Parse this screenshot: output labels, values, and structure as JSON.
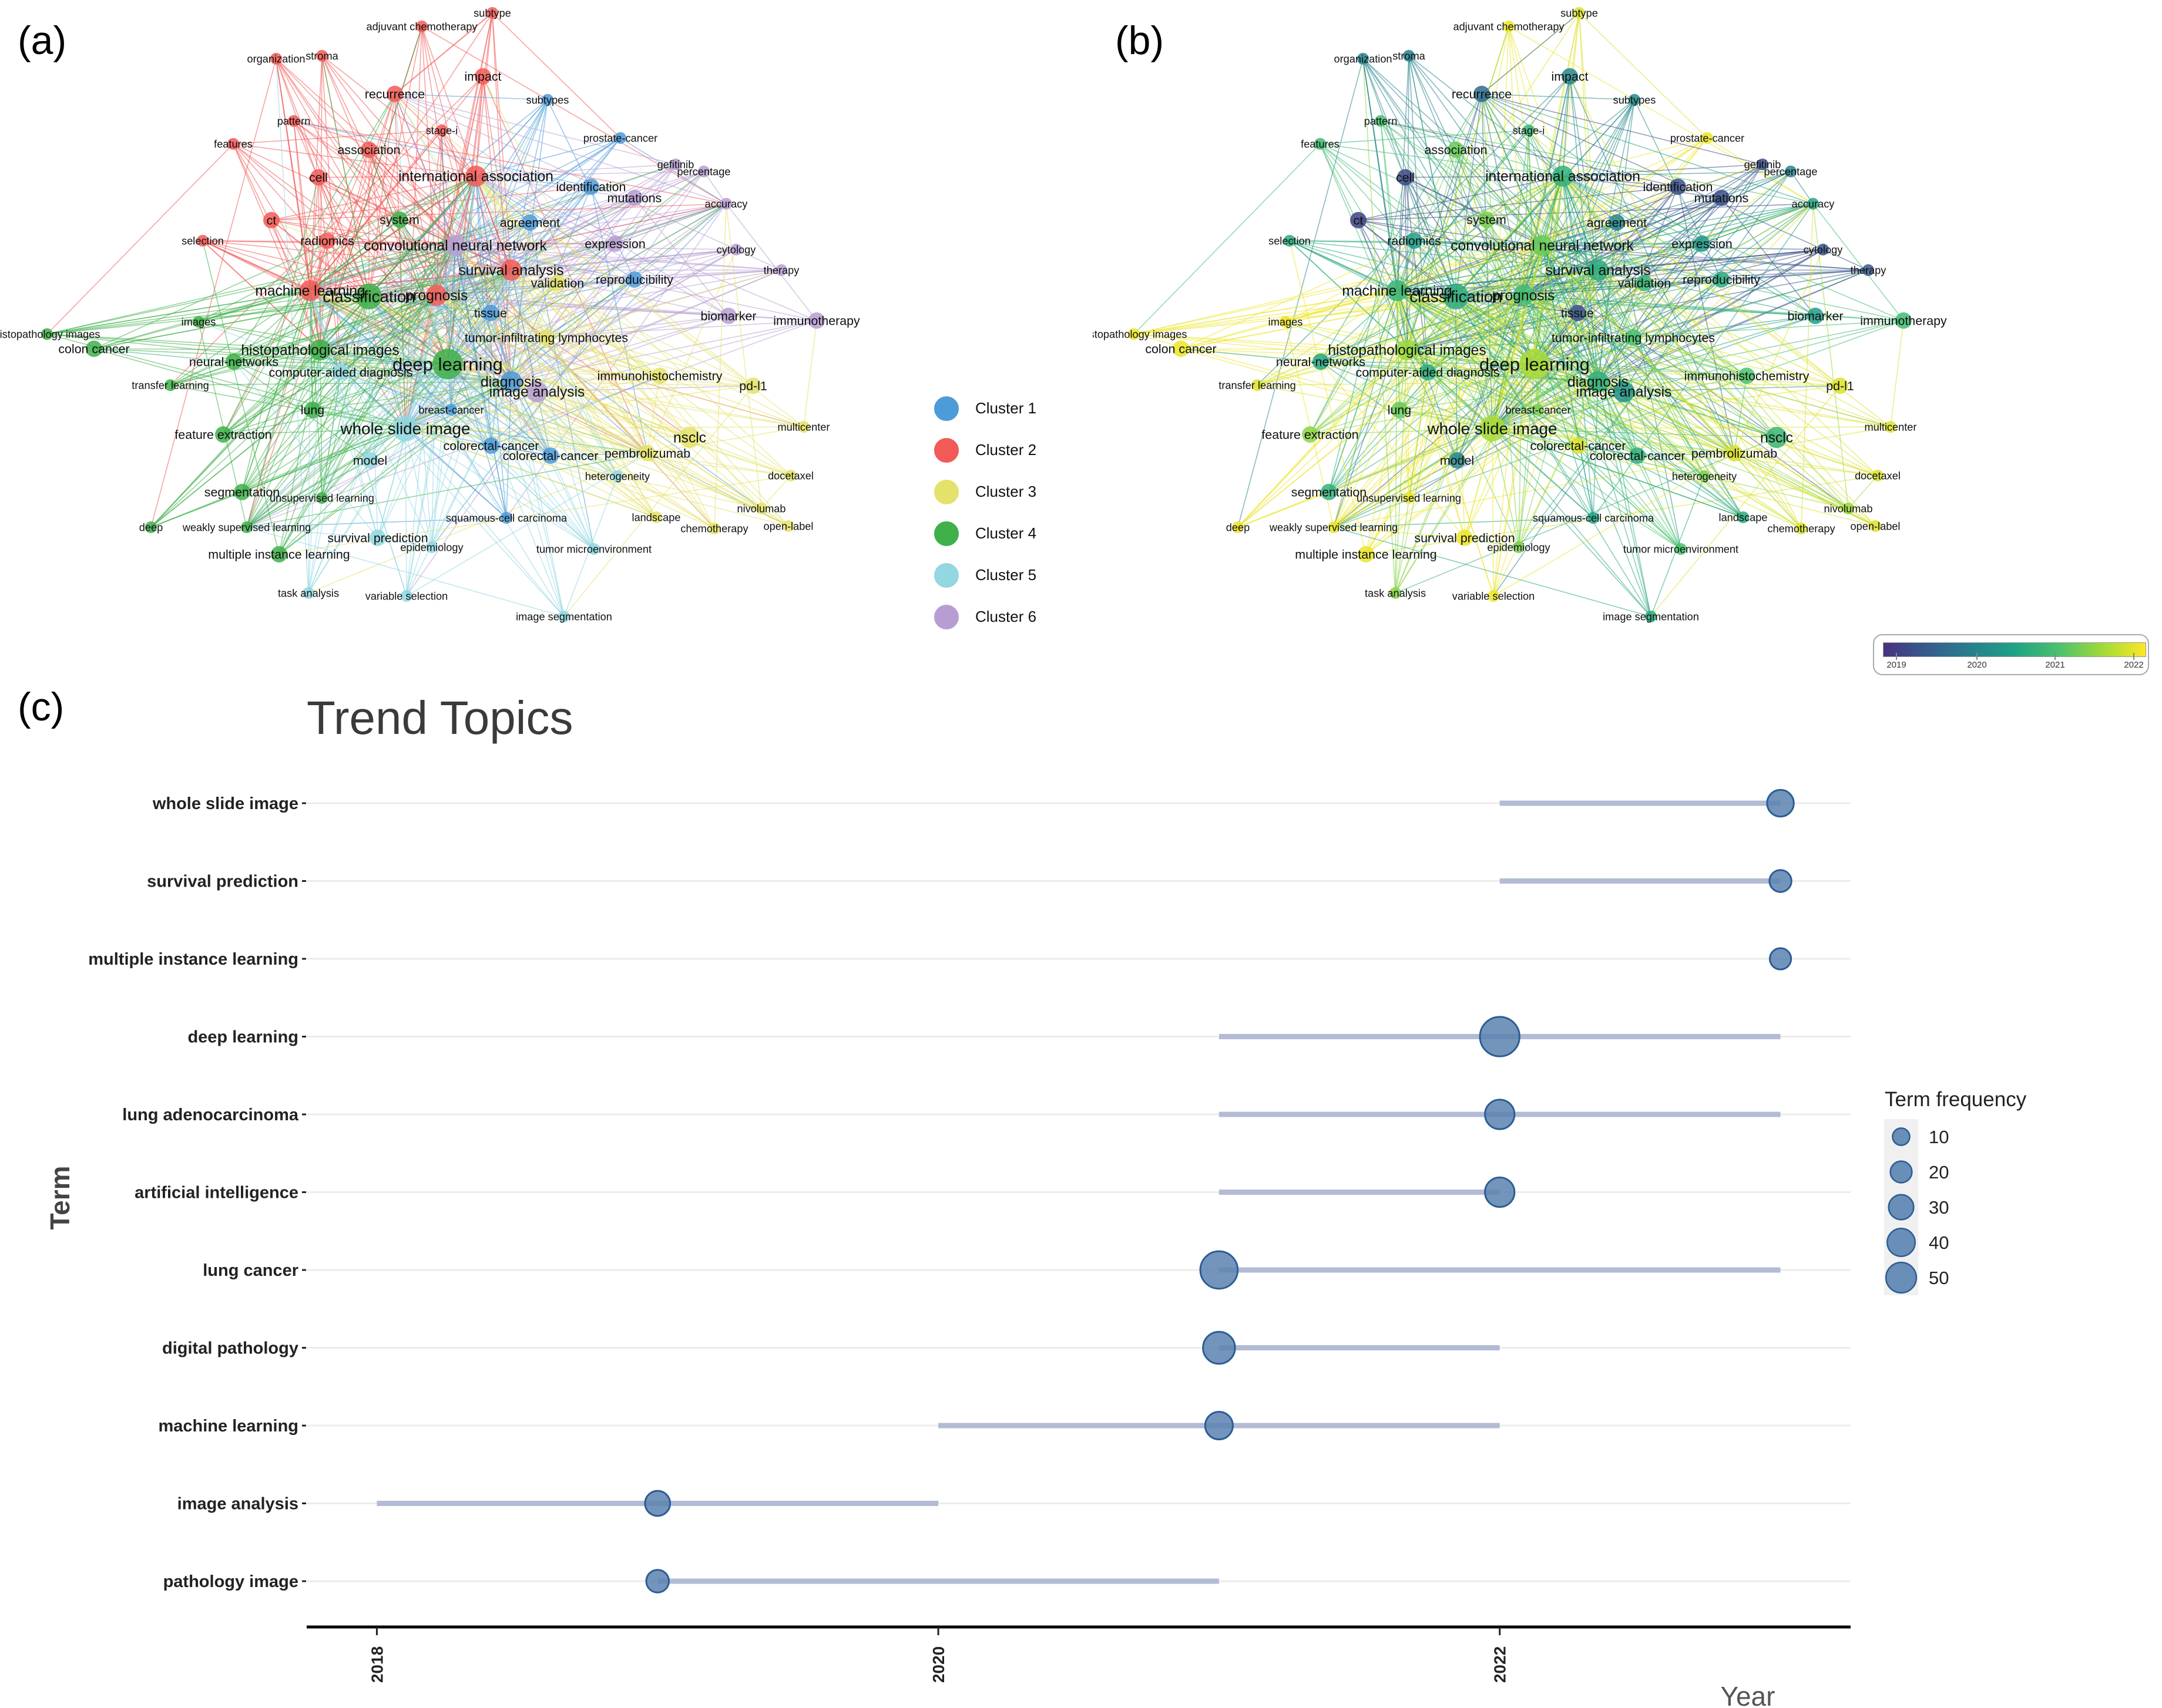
{
  "panels": {
    "a_label": "(a)",
    "b_label": "(b)",
    "c_label": "(c)"
  },
  "network": {
    "clusters": [
      {
        "name": "Cluster 1",
        "color": "#4e9bd9"
      },
      {
        "name": "Cluster 2",
        "color": "#f25a57"
      },
      {
        "name": "Cluster 3",
        "color": "#e4e26a"
      },
      {
        "name": "Cluster 4",
        "color": "#3fb04a"
      },
      {
        "name": "Cluster 5",
        "color": "#92d7e1"
      },
      {
        "name": "Cluster 6",
        "color": "#b79ed2"
      }
    ],
    "overlay_scale": {
      "ticks": [
        "2019",
        "2020",
        "2021",
        "2022"
      ],
      "colors": [
        "#46327e",
        "#277f8e",
        "#4ac16d",
        "#fde725"
      ]
    },
    "nodes": [
      {
        "label": "subtype",
        "cluster": 2,
        "year": 2021.9,
        "w": 1
      },
      {
        "label": "adjuvant chemotherapy",
        "cluster": 2,
        "year": 2022.0,
        "w": 1
      },
      {
        "label": "organization",
        "cluster": 2,
        "year": 2020.0,
        "w": 1
      },
      {
        "label": "stroma",
        "cluster": 2,
        "year": 2019.9,
        "w": 1
      },
      {
        "label": "impact",
        "cluster": 2,
        "year": 2020.0,
        "w": 2
      },
      {
        "label": "recurrence",
        "cluster": 2,
        "year": 2019.6,
        "w": 2
      },
      {
        "label": "subtypes",
        "cluster": 1,
        "year": 2020.1,
        "w": 1
      },
      {
        "label": "pattern",
        "cluster": 2,
        "year": 2021.0,
        "w": 1
      },
      {
        "label": "stage-i",
        "cluster": 2,
        "year": 2020.8,
        "w": 1
      },
      {
        "label": "features",
        "cluster": 2,
        "year": 2020.9,
        "w": 1
      },
      {
        "label": "association",
        "cluster": 2,
        "year": 2021.2,
        "w": 2
      },
      {
        "label": "prostate-cancer",
        "cluster": 1,
        "year": 2022.0,
        "w": 1
      },
      {
        "label": "gefitinib",
        "cluster": 6,
        "year": 2019.2,
        "w": 1
      },
      {
        "label": "percentage",
        "cluster": 6,
        "year": 2020.0,
        "w": 1
      },
      {
        "label": "international association",
        "cluster": 2,
        "year": 2020.7,
        "w": 3
      },
      {
        "label": "cell",
        "cluster": 2,
        "year": 2019.1,
        "w": 2
      },
      {
        "label": "identification",
        "cluster": 1,
        "year": 2019.2,
        "w": 2
      },
      {
        "label": "mutations",
        "cluster": 6,
        "year": 2019.2,
        "w": 2
      },
      {
        "label": "accuracy",
        "cluster": 6,
        "year": 2020.5,
        "w": 1
      },
      {
        "label": "ct",
        "cluster": 2,
        "year": 2019.0,
        "w": 2
      },
      {
        "label": "system",
        "cluster": 4,
        "year": 2021.3,
        "w": 2
      },
      {
        "label": "agreement",
        "cluster": 1,
        "year": 2020.0,
        "w": 2
      },
      {
        "label": "selection",
        "cluster": 2,
        "year": 2020.6,
        "w": 1
      },
      {
        "label": "radiomics",
        "cluster": 2,
        "year": 2020.4,
        "w": 2
      },
      {
        "label": "convolutional neural network",
        "cluster": 6,
        "year": 2021.2,
        "w": 3
      },
      {
        "label": "expression",
        "cluster": 6,
        "year": 2020.3,
        "w": 2
      },
      {
        "label": "cytology",
        "cluster": 6,
        "year": 2019.2,
        "w": 1
      },
      {
        "label": "survival analysis",
        "cluster": 2,
        "year": 2020.6,
        "w": 3
      },
      {
        "label": "validation",
        "cluster": 3,
        "year": 2020.8,
        "w": 2
      },
      {
        "label": "reproducibility",
        "cluster": 1,
        "year": 2020.6,
        "w": 2
      },
      {
        "label": "therapy",
        "cluster": 6,
        "year": 2019.3,
        "w": 1
      },
      {
        "label": "machine learning",
        "cluster": 2,
        "year": 2020.8,
        "w": 3
      },
      {
        "label": "classification",
        "cluster": 4,
        "year": 2020.6,
        "w": 4
      },
      {
        "label": "prognosis",
        "cluster": 2,
        "year": 2020.9,
        "w": 3
      },
      {
        "label": "tissue",
        "cluster": 1,
        "year": 2019.2,
        "w": 2
      },
      {
        "label": "images",
        "cluster": 4,
        "year": 2022.0,
        "w": 1
      },
      {
        "label": "biomarker",
        "cluster": 6,
        "year": 2020.4,
        "w": 2
      },
      {
        "label": "immunotherapy",
        "cluster": 6,
        "year": 2020.9,
        "w": 2
      },
      {
        "label": "histopathology images",
        "cluster": 4,
        "year": 2022.0,
        "w": 1
      },
      {
        "label": "colon cancer",
        "cluster": 4,
        "year": 2022.0,
        "w": 2
      },
      {
        "label": "histopathological images",
        "cluster": 4,
        "year": 2021.5,
        "w": 3
      },
      {
        "label": "tumor-infiltrating lymphocytes",
        "cluster": 3,
        "year": 2021.0,
        "w": 2
      },
      {
        "label": "neural-networks",
        "cluster": 4,
        "year": 2020.5,
        "w": 2
      },
      {
        "label": "deep learning",
        "cluster": 4,
        "year": 2021.6,
        "w": 5
      },
      {
        "label": "computer-aided diagnosis",
        "cluster": 5,
        "year": 2020.6,
        "w": 2
      },
      {
        "label": "diagnosis",
        "cluster": 1,
        "year": 2020.7,
        "w": 3
      },
      {
        "label": "immunohistochemistry",
        "cluster": 3,
        "year": 2021.0,
        "w": 2
      },
      {
        "label": "image analysis",
        "cluster": 6,
        "year": 2020.2,
        "w": 3
      },
      {
        "label": "pd-l1",
        "cluster": 3,
        "year": 2021.9,
        "w": 2
      },
      {
        "label": "transfer learning",
        "cluster": 4,
        "year": 2021.9,
        "w": 1
      },
      {
        "label": "lung",
        "cluster": 4,
        "year": 2021.2,
        "w": 2
      },
      {
        "label": "breast-cancer",
        "cluster": 1,
        "year": 2021.3,
        "w": 1
      },
      {
        "label": "multicenter",
        "cluster": 3,
        "year": 2021.9,
        "w": 1
      },
      {
        "label": "whole slide image",
        "cluster": 5,
        "year": 2021.6,
        "w": 4
      },
      {
        "label": "feature extraction",
        "cluster": 4,
        "year": 2021.4,
        "w": 2
      },
      {
        "label": "colorectal-cancer",
        "cluster": 1,
        "year": 2021.9,
        "w": 2
      },
      {
        "label": "nsclc",
        "cluster": 3,
        "year": 2020.8,
        "w": 3
      },
      {
        "label": "pembrolizumab",
        "cluster": 3,
        "year": 2021.9,
        "w": 2
      },
      {
        "label": "colorectal-cancer",
        "cluster": 1,
        "year": 2020.7,
        "w": 2
      },
      {
        "label": "model",
        "cluster": 5,
        "year": 2020.0,
        "w": 2
      },
      {
        "label": "heterogeneity",
        "cluster": 5,
        "year": 2021.3,
        "w": 1
      },
      {
        "label": "nivolumab",
        "cluster": 3,
        "year": 2021.5,
        "w": 1
      },
      {
        "label": "segmentation",
        "cluster": 4,
        "year": 2020.7,
        "w": 2
      },
      {
        "label": "unsupervised learning",
        "cluster": 4,
        "year": 2022.0,
        "w": 1
      },
      {
        "label": "docetaxel",
        "cluster": 3,
        "year": 2021.9,
        "w": 1
      },
      {
        "label": "squamous-cell carcinoma",
        "cluster": 1,
        "year": 2020.5,
        "w": 1
      },
      {
        "label": "landscape",
        "cluster": 3,
        "year": 2020.6,
        "w": 1
      },
      {
        "label": "chemotherapy",
        "cluster": 3,
        "year": 2021.9,
        "w": 1
      },
      {
        "label": "open-label",
        "cluster": 3,
        "year": 2021.9,
        "w": 1
      },
      {
        "label": "deep",
        "cluster": 4,
        "year": 2022.0,
        "w": 1
      },
      {
        "label": "weakly supervised learning",
        "cluster": 4,
        "year": 2022.0,
        "w": 1
      },
      {
        "label": "survival prediction",
        "cluster": 5,
        "year": 2022.0,
        "w": 2
      },
      {
        "label": "epidemiology",
        "cluster": 5,
        "year": 2021.3,
        "w": 1
      },
      {
        "label": "multiple instance learning",
        "cluster": 4,
        "year": 2022.0,
        "w": 2
      },
      {
        "label": "tumor microenvironment",
        "cluster": 5,
        "year": 2021.0,
        "w": 1
      },
      {
        "label": "task analysis",
        "cluster": 5,
        "year": 2021.4,
        "w": 1
      },
      {
        "label": "variable selection",
        "cluster": 5,
        "year": 2022.0,
        "w": 1
      },
      {
        "label": "image segmentation",
        "cluster": 5,
        "year": 2020.6,
        "w": 1
      }
    ]
  },
  "chart_data": {
    "type": "scatter",
    "title": "Trend Topics",
    "xlabel": "Year",
    "ylabel": "Term",
    "xlim": [
      2017.75,
      2023.25
    ],
    "xticks": [
      2018,
      2020,
      2022
    ],
    "grid": true,
    "legend": {
      "title": "Term frequency",
      "placement": "right",
      "sizes": [
        10,
        20,
        30,
        40,
        50
      ]
    },
    "categories": [
      "whole slide image",
      "survival prediction",
      "multiple instance learning",
      "deep learning",
      "lung adenocarcinoma",
      "artificial intelligence",
      "lung cancer",
      "digital pathology",
      "machine learning",
      "image analysis",
      "pathology image"
    ],
    "series": [
      {
        "name": "year_q1",
        "values": [
          2022,
          2022,
          2023,
          2021,
          2021,
          2021,
          2021,
          2021,
          2020,
          2018,
          2019
        ]
      },
      {
        "name": "year_median",
        "values": [
          2023,
          2023,
          2023,
          2022,
          2022,
          2022,
          2021,
          2021,
          2021,
          2019,
          2019
        ]
      },
      {
        "name": "year_q3",
        "values": [
          2023,
          2023,
          2023,
          2023,
          2023,
          2022,
          2023,
          2022,
          2022,
          2020,
          2021
        ]
      },
      {
        "name": "term_frequency",
        "values": [
          18,
          10,
          9,
          52,
          24,
          24,
          45,
          30,
          20,
          15,
          11
        ]
      }
    ],
    "colors": {
      "point_fill": "#5a83b0",
      "point_stroke": "#2c5d94",
      "segment": "#b3bcd4",
      "gridline": "#ececec"
    }
  }
}
